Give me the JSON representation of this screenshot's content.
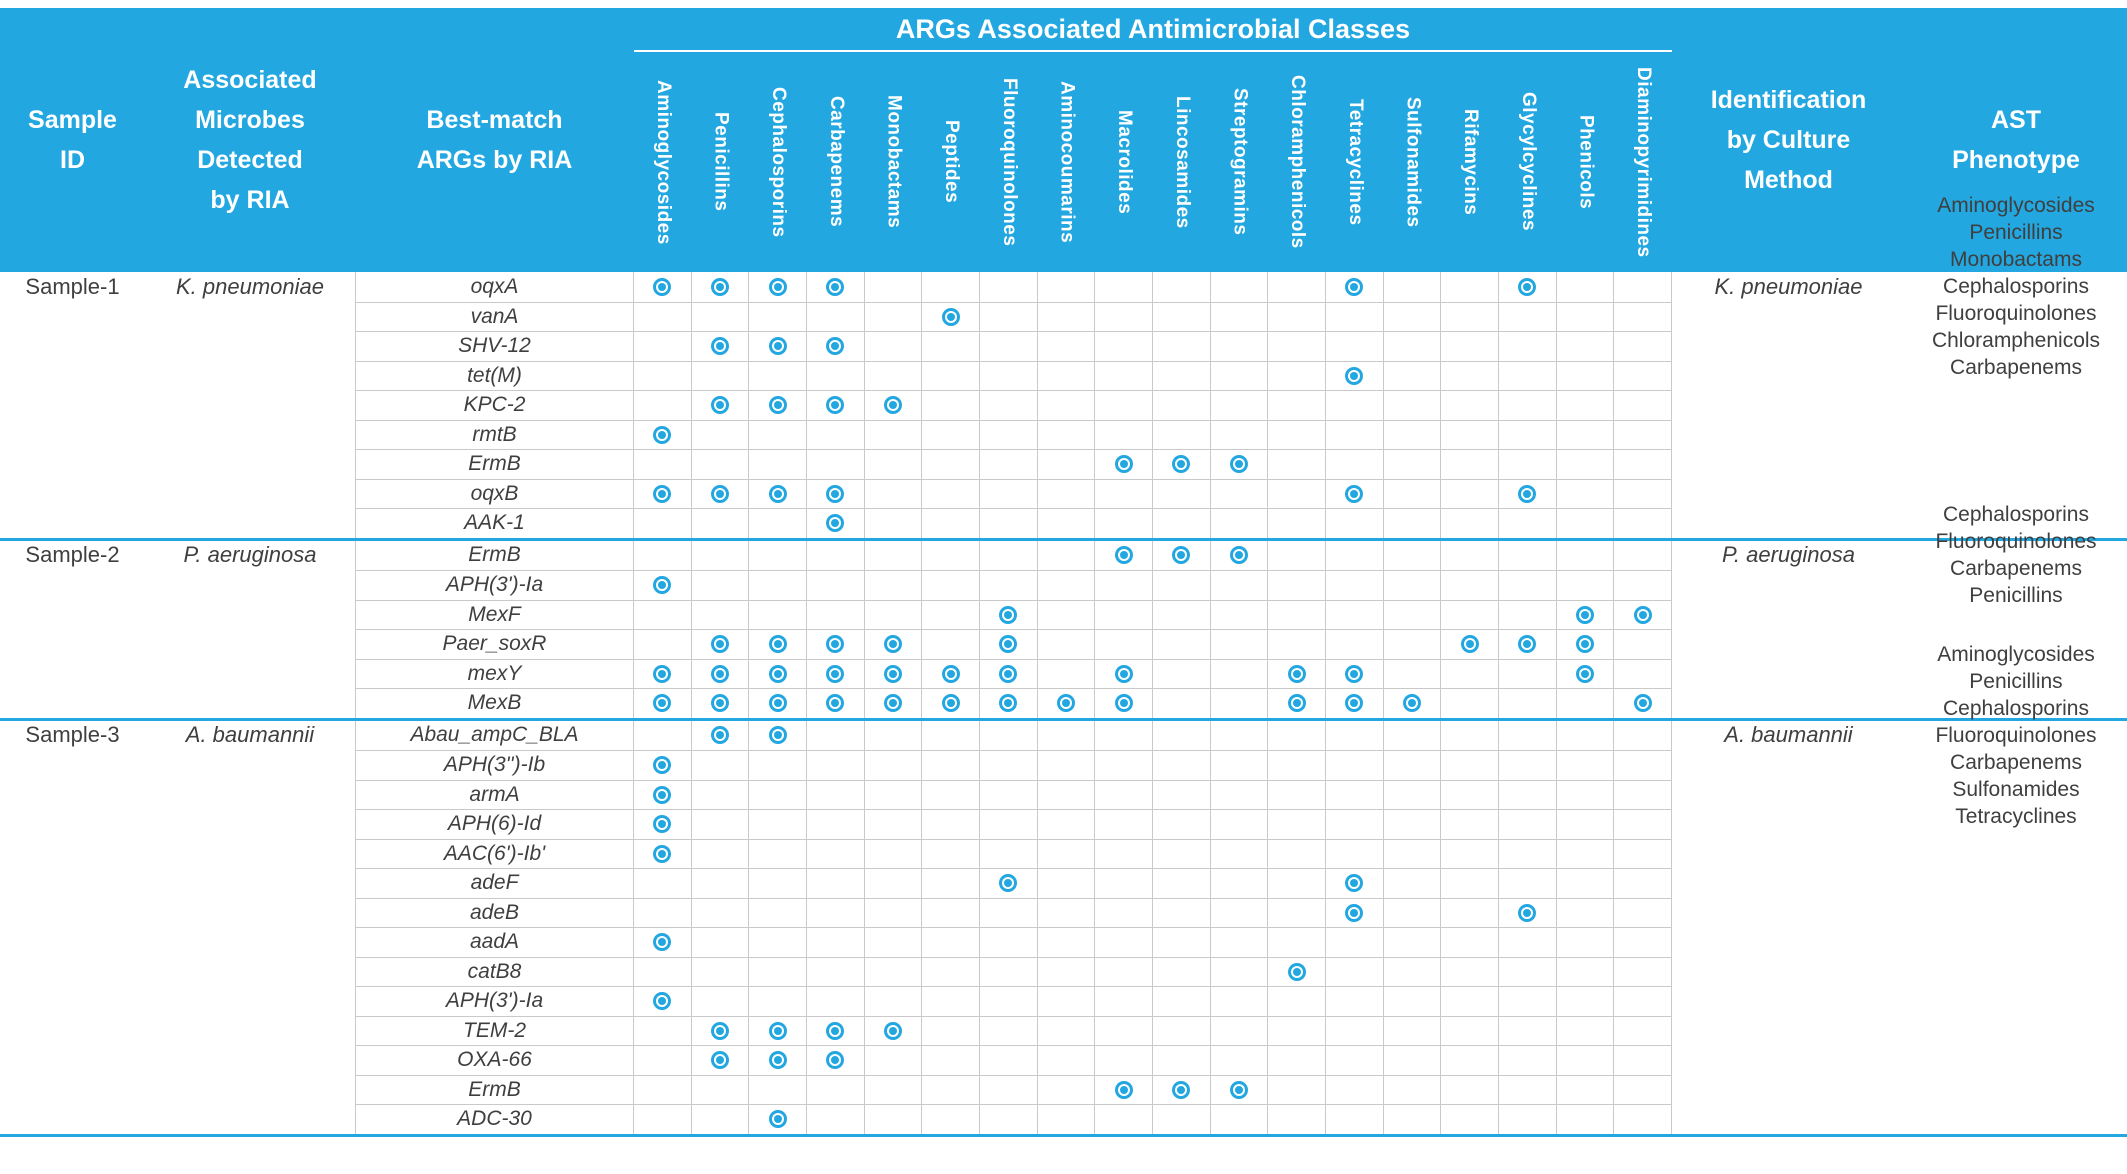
{
  "colors": {
    "accent": "#22A7E0",
    "grid": "#C9C9C9",
    "text": "#3F3F3F"
  },
  "header": {
    "sample_id": "Sample\nID",
    "microbes": "Associated\nMicrobes\nDetected\nby RIA",
    "best_match": "Best-match\nARGs by RIA",
    "arg_classes_title": "ARGs Associated Antimicrobial Classes",
    "identification": "Identification\nby Culture\nMethod",
    "ast": "AST\nPhenotype"
  },
  "classes": [
    "Aminoglycosides",
    "Penicillins",
    "Cephalosporins",
    "Carbapenems",
    "Monobactams",
    "Peptides",
    "Fluoroquinolones",
    "Aminocoumarins",
    "Macrolides",
    "Lincosamides",
    "Streptogramins",
    "Chloramphenicols",
    "Tetracyclines",
    "Sulfonamides",
    "Rifamycins",
    "Glycylcyclines",
    "Phenicols",
    "Diaminopyrimidines"
  ],
  "samples": [
    {
      "sample_id": "Sample-1",
      "microbe": "K. pneumoniae",
      "identification": "K. pneumoniae",
      "ast_phenotype": [
        "Aminoglycosides",
        "Penicillins",
        "Monobactams",
        "Cephalosporins",
        "Fluoroquinolones",
        "Chloramphenicols",
        "Carbapenems"
      ],
      "genes": [
        {
          "name": "oqxA",
          "classes": [
            "Aminoglycosides",
            "Penicillins",
            "Cephalosporins",
            "Carbapenems",
            "Tetracyclines",
            "Glycylcyclines"
          ]
        },
        {
          "name": "vanA",
          "classes": [
            "Peptides"
          ]
        },
        {
          "name": "SHV-12",
          "classes": [
            "Penicillins",
            "Cephalosporins",
            "Carbapenems"
          ]
        },
        {
          "name": "tet(M)",
          "classes": [
            "Tetracyclines"
          ]
        },
        {
          "name": "KPC-2",
          "classes": [
            "Penicillins",
            "Cephalosporins",
            "Carbapenems",
            "Monobactams"
          ]
        },
        {
          "name": "rmtB",
          "classes": [
            "Aminoglycosides"
          ]
        },
        {
          "name": "ErmB",
          "classes": [
            "Macrolides",
            "Lincosamides",
            "Streptogramins"
          ]
        },
        {
          "name": "oqxB",
          "classes": [
            "Aminoglycosides",
            "Penicillins",
            "Cephalosporins",
            "Carbapenems",
            "Tetracyclines",
            "Glycylcyclines"
          ]
        },
        {
          "name": "AAK-1",
          "classes": [
            "Carbapenems"
          ]
        }
      ]
    },
    {
      "sample_id": "Sample-2",
      "microbe": "P. aeruginosa",
      "identification": "P. aeruginosa",
      "ast_phenotype": [
        "Cephalosporins",
        "Fluoroquinolones",
        "Carbapenems",
        "Penicillins"
      ],
      "genes": [
        {
          "name": "ErmB",
          "classes": [
            "Macrolides",
            "Lincosamides",
            "Streptogramins"
          ]
        },
        {
          "name": "APH(3')-Ia",
          "classes": [
            "Aminoglycosides"
          ]
        },
        {
          "name": "MexF",
          "classes": [
            "Fluoroquinolones",
            "Phenicols",
            "Diaminopyrimidines"
          ]
        },
        {
          "name": "Paer_soxR",
          "classes": [
            "Penicillins",
            "Cephalosporins",
            "Carbapenems",
            "Monobactams",
            "Fluoroquinolones",
            "Rifamycins",
            "Glycylcyclines",
            "Phenicols"
          ]
        },
        {
          "name": "mexY",
          "classes": [
            "Aminoglycosides",
            "Penicillins",
            "Cephalosporins",
            "Carbapenems",
            "Monobactams",
            "Peptides",
            "Fluoroquinolones",
            "Macrolides",
            "Chloramphenicols",
            "Tetracyclines",
            "Phenicols"
          ]
        },
        {
          "name": "MexB",
          "classes": [
            "Aminoglycosides",
            "Penicillins",
            "Cephalosporins",
            "Carbapenems",
            "Monobactams",
            "Peptides",
            "Fluoroquinolones",
            "Aminocoumarins",
            "Macrolides",
            "Chloramphenicols",
            "Tetracyclines",
            "Sulfonamides",
            "Diaminopyrimidines"
          ]
        }
      ]
    },
    {
      "sample_id": "Sample-3",
      "microbe": "A. baumannii",
      "identification": "A. baumannii",
      "ast_phenotype": [
        "Aminoglycosides",
        "Penicillins",
        "Cephalosporins",
        "Fluoroquinolones",
        "Carbapenems",
        "Sulfonamides",
        "Tetracyclines"
      ],
      "genes": [
        {
          "name": "Abau_ampC_BLA",
          "classes": [
            "Penicillins",
            "Cephalosporins"
          ]
        },
        {
          "name": "APH(3'')-Ib",
          "classes": [
            "Aminoglycosides"
          ]
        },
        {
          "name": "armA",
          "classes": [
            "Aminoglycosides"
          ]
        },
        {
          "name": "APH(6)-Id",
          "classes": [
            "Aminoglycosides"
          ]
        },
        {
          "name": "AAC(6')-Ib'",
          "classes": [
            "Aminoglycosides"
          ]
        },
        {
          "name": "adeF",
          "classes": [
            "Fluoroquinolones",
            "Tetracyclines"
          ]
        },
        {
          "name": "adeB",
          "classes": [
            "Tetracyclines",
            "Glycylcyclines"
          ]
        },
        {
          "name": "aadA",
          "classes": [
            "Aminoglycosides"
          ]
        },
        {
          "name": "catB8",
          "classes": [
            "Chloramphenicols"
          ]
        },
        {
          "name": "APH(3')-Ia",
          "classes": [
            "Aminoglycosides"
          ]
        },
        {
          "name": "TEM-2",
          "classes": [
            "Penicillins",
            "Cephalosporins",
            "Carbapenems",
            "Monobactams"
          ]
        },
        {
          "name": "OXA-66",
          "classes": [
            "Penicillins",
            "Cephalosporins",
            "Carbapenems"
          ]
        },
        {
          "name": "ErmB",
          "classes": [
            "Macrolides",
            "Lincosamides",
            "Streptogramins"
          ]
        },
        {
          "name": "ADC-30",
          "classes": [
            "Cephalosporins"
          ]
        }
      ]
    }
  ]
}
